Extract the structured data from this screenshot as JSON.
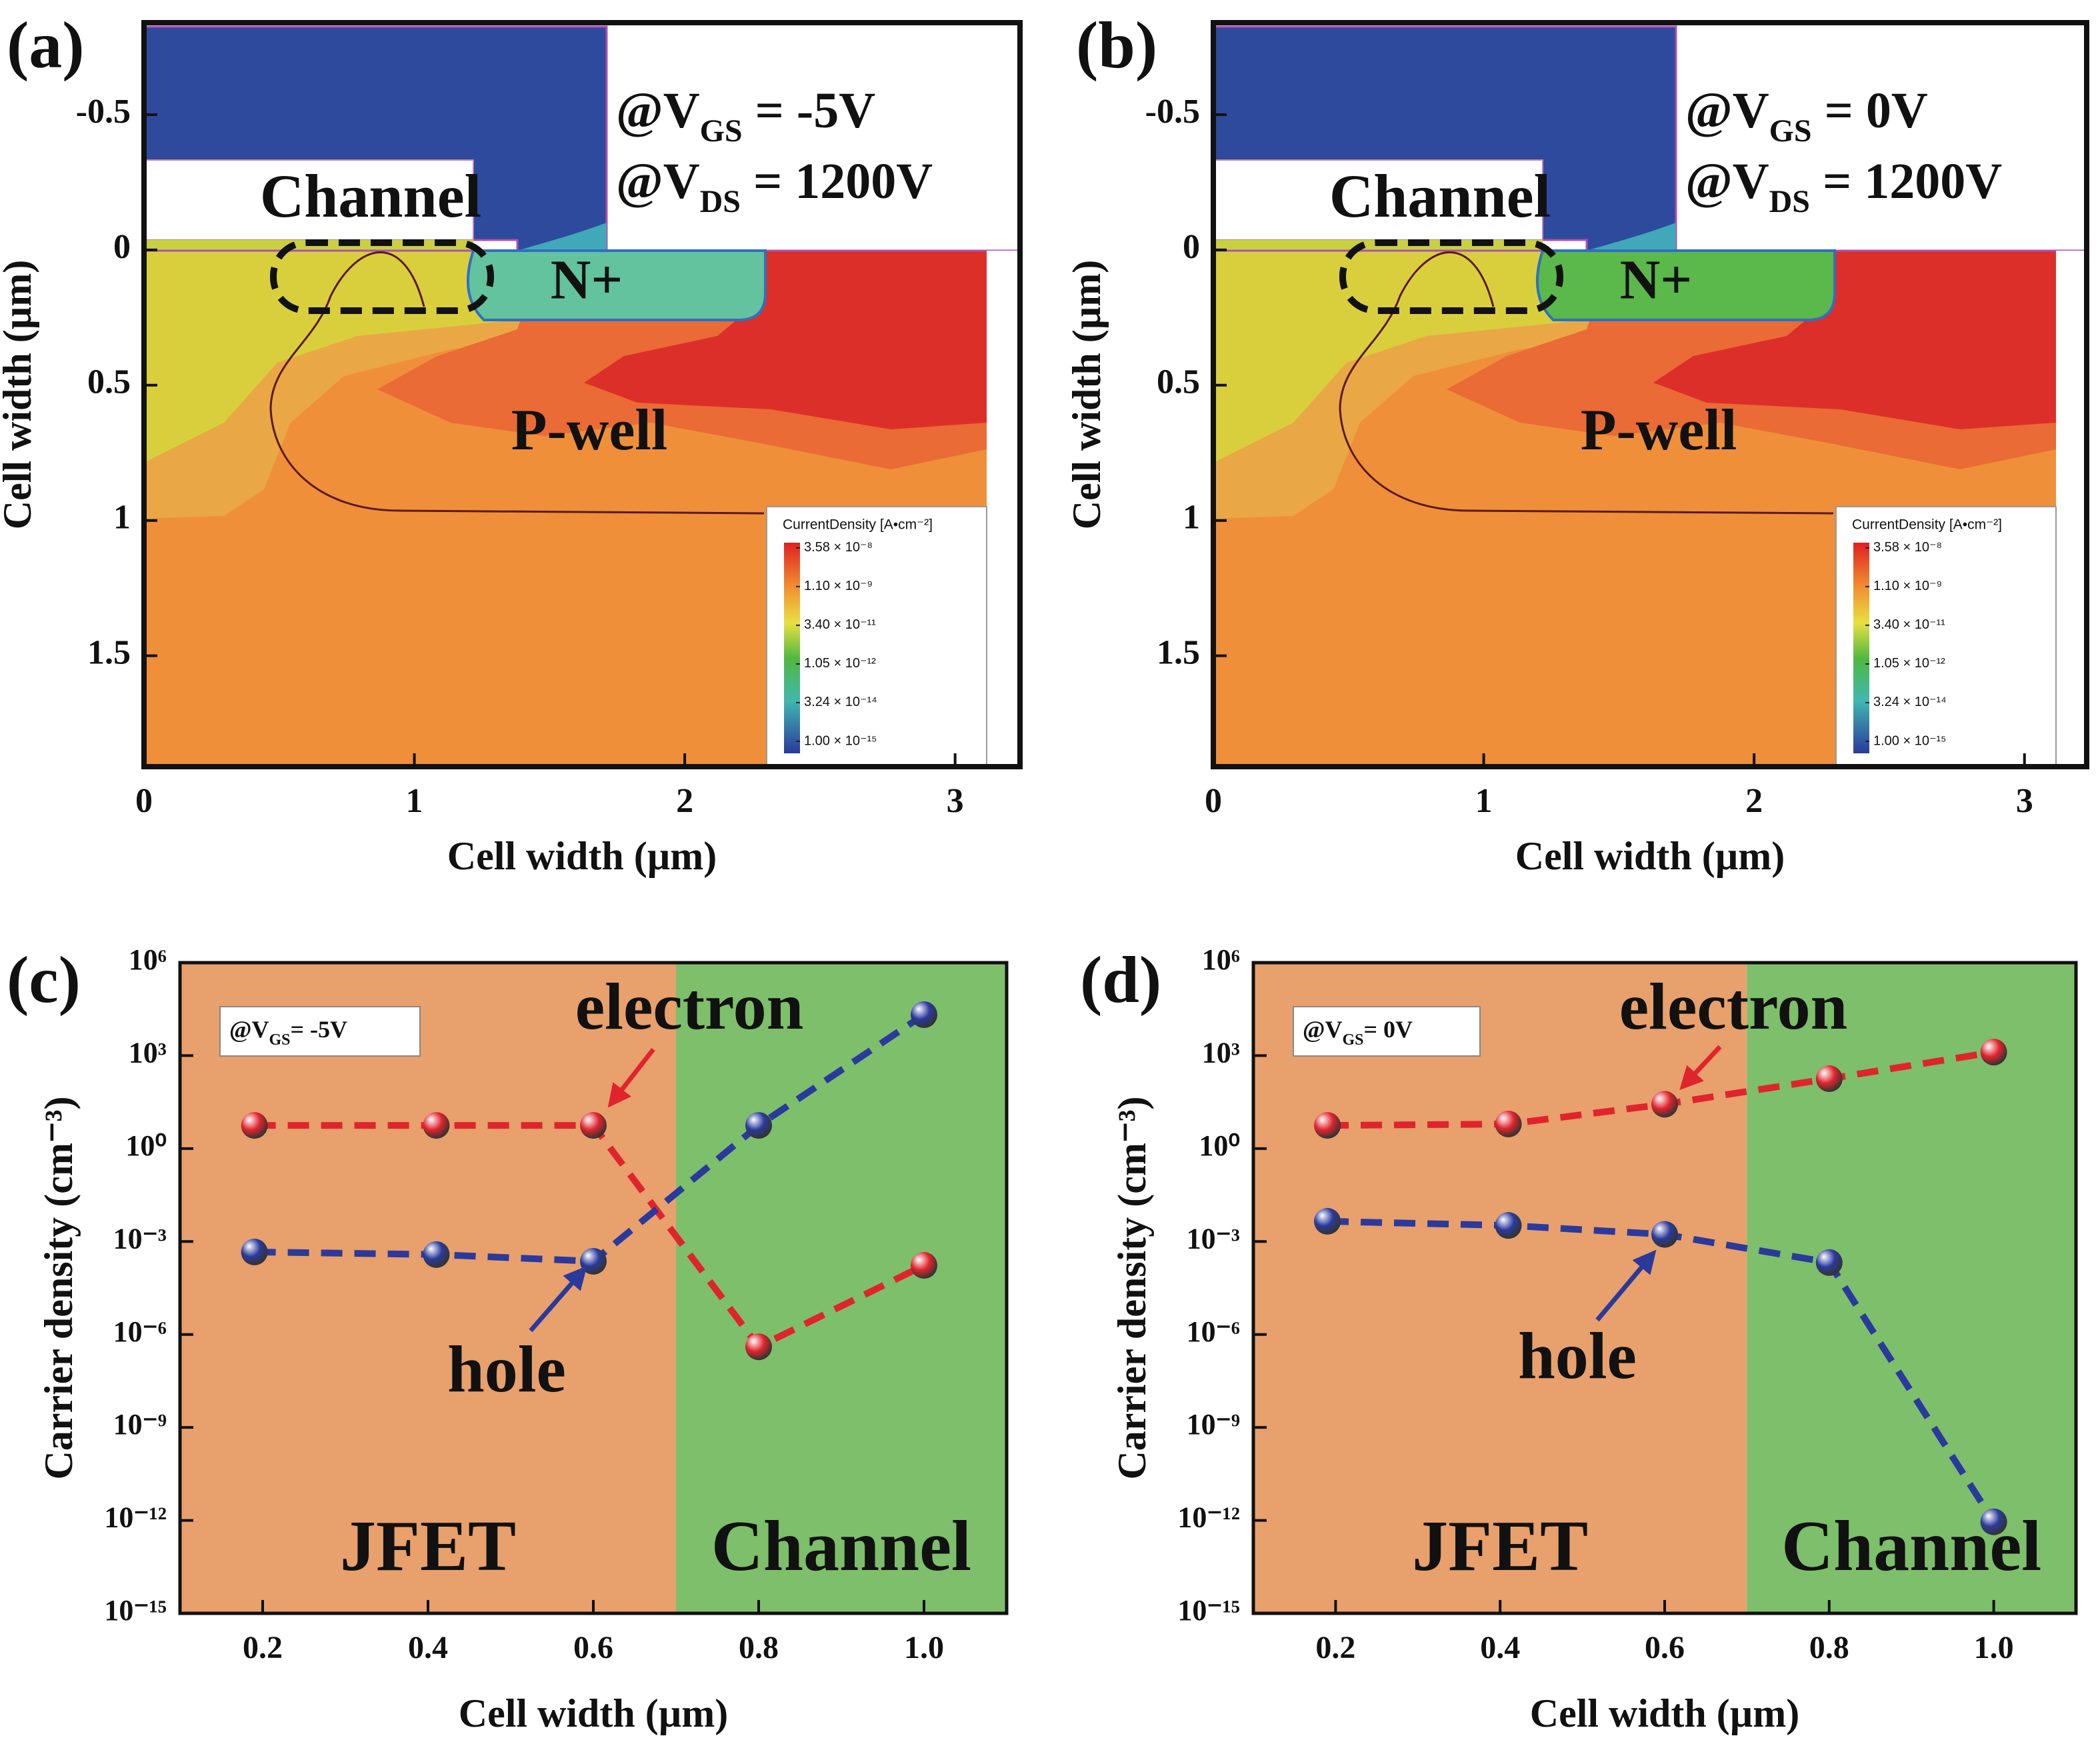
{
  "chart_data": [
    {
      "type": "contour",
      "panel_label": "(a)",
      "xlabel": "Cell width (µm)",
      "ylabel": "Cell width (µm)",
      "xlim": [
        0,
        3.24
      ],
      "ylim": [
        1.91,
        -0.84
      ],
      "xticks": [
        0,
        1,
        2,
        3
      ],
      "yticks": [
        -0.5,
        0,
        0.5,
        1,
        1.5
      ],
      "annotations": [
        {
          "parts": [
            "@V",
            "GS",
            " = -5V"
          ],
          "color": "#d42a35"
        },
        {
          "parts": [
            "@V",
            "DS",
            " = 1200V"
          ],
          "color": "#111111"
        }
      ],
      "region_labels": [
        "Channel",
        "N+",
        "P-well"
      ],
      "colorbar": {
        "title": "CurrentDensity [A•cm⁻²]",
        "log": true,
        "clim": [
          3.4e-16,
          5.7e-08
        ],
        "ticks": [
          {
            "value": 3.58e-08,
            "label": "3.58 × 10⁻⁸"
          },
          {
            "value": 1.1e-09,
            "label": "1.10 × 10⁻⁹"
          },
          {
            "value": 3.4e-11,
            "label": "3.40 × 10⁻¹¹"
          },
          {
            "value": 1.05e-12,
            "label": "1.05 × 10⁻¹²"
          },
          {
            "value": 3.24e-14,
            "label": "3.24 × 10⁻¹⁴"
          },
          {
            "value": 1e-15,
            "label": "1.00 × 10⁻¹⁵"
          }
        ]
      }
    },
    {
      "type": "contour",
      "panel_label": "(b)",
      "xlabel": "Cell width (µm)",
      "ylabel": "Cell width (µm)",
      "xlim": [
        0,
        3.23
      ],
      "ylim": [
        1.91,
        -0.84
      ],
      "xticks": [
        0,
        1,
        2,
        3
      ],
      "yticks": [
        -0.5,
        0,
        0.5,
        1,
        1.5
      ],
      "annotations": [
        {
          "parts": [
            "@V",
            "GS",
            " = 0V"
          ],
          "color": "#d42a35"
        },
        {
          "parts": [
            "@V",
            "DS",
            " = 1200V"
          ],
          "color": "#111111"
        }
      ],
      "region_labels": [
        "Channel",
        "N+",
        "P-well"
      ],
      "colorbar": {
        "title": "CurrentDensity [A•cm⁻²]",
        "log": true,
        "clim": [
          3.4e-16,
          5.7e-08
        ],
        "ticks": [
          {
            "value": 3.58e-08,
            "label": "3.58 × 10⁻⁸"
          },
          {
            "value": 1.1e-09,
            "label": "1.10 × 10⁻⁹"
          },
          {
            "value": 3.4e-11,
            "label": "3.40 × 10⁻¹¹"
          },
          {
            "value": 1.05e-12,
            "label": "1.05 × 10⁻¹²"
          },
          {
            "value": 3.24e-14,
            "label": "3.24 × 10⁻¹⁴"
          },
          {
            "value": 1e-15,
            "label": "1.00 × 10⁻¹⁵"
          }
        ]
      }
    },
    {
      "type": "line",
      "panel_label": "(c)",
      "xlabel": "Cell width (µm)",
      "ylabel": "Carrier density (cm⁻³)",
      "xlim": [
        0.1,
        1.1
      ],
      "xticks": [
        0.2,
        0.4,
        0.6,
        0.8,
        {
          "value": 1,
          "label": "1.0"
        }
      ],
      "yscale": "log",
      "ylim": [
        1e-15,
        1000000.0
      ],
      "yticks": [
        {
          "value": 1e-15,
          "label": "10⁻¹⁵"
        },
        {
          "value": 1e-12,
          "label": "10⁻¹²"
        },
        {
          "value": 1e-09,
          "label": "10⁻⁹"
        },
        {
          "value": 1e-06,
          "label": "10⁻⁶"
        },
        {
          "value": 0.001,
          "label": "10⁻³"
        },
        {
          "value": 1,
          "label": "10⁰"
        },
        {
          "value": 1000,
          "label": "10³"
        },
        {
          "value": 1000000,
          "label": "10⁶"
        }
      ],
      "x": [
        0.19,
        0.41,
        0.6,
        0.8,
        1.0
      ],
      "series": [
        {
          "name": "electron",
          "color": "#e0242c",
          "values": [
            5.6,
            5.6,
            5.6,
            4e-07,
            0.00017
          ]
        },
        {
          "name": "hole",
          "color": "#2a3a9c",
          "values": [
            0.00046,
            0.00038,
            0.00023,
            5.6,
            21000
          ]
        }
      ],
      "regions": [
        {
          "name": "JFET",
          "from": 0.1,
          "to": 0.7,
          "color": "#e8a06c"
        },
        {
          "name": "Channel",
          "from": 0.7,
          "to": 1.1,
          "color": "#7dbf6a"
        }
      ],
      "annotation": {
        "parts": [
          "@V",
          "GS",
          "= -5V"
        ]
      }
    },
    {
      "type": "line",
      "panel_label": "(d)",
      "xlabel": "Cell width (µm)",
      "ylabel": "Carrier density (cm⁻³)",
      "xlim": [
        0.1,
        1.1
      ],
      "xticks": [
        0.2,
        0.4,
        0.6,
        0.8,
        {
          "value": 1,
          "label": "1.0"
        }
      ],
      "yscale": "log",
      "ylim": [
        1e-15,
        1000000.0
      ],
      "yticks": [
        {
          "value": 1e-15,
          "label": "10⁻¹⁵"
        },
        {
          "value": 1e-12,
          "label": "10⁻¹²"
        },
        {
          "value": 1e-09,
          "label": "10⁻⁹"
        },
        {
          "value": 1e-06,
          "label": "10⁻⁶"
        },
        {
          "value": 0.001,
          "label": "10⁻³"
        },
        {
          "value": 1,
          "label": "10⁰"
        },
        {
          "value": 1000,
          "label": "10³"
        },
        {
          "value": 1000000,
          "label": "10⁶"
        }
      ],
      "x": [
        0.19,
        0.41,
        0.6,
        0.8,
        1.0
      ],
      "series": [
        {
          "name": "electron",
          "color": "#e0242c",
          "values": [
            5.6,
            6.2,
            27,
            180,
            1300
          ]
        },
        {
          "name": "hole",
          "color": "#2a3a9c",
          "values": [
            0.0045,
            0.0033,
            0.0017,
            0.00021,
            9e-13
          ]
        }
      ],
      "regions": [
        {
          "name": "JFET",
          "from": 0.1,
          "to": 0.7,
          "color": "#e8a06c"
        },
        {
          "name": "Channel",
          "from": 0.7,
          "to": 1.1,
          "color": "#7dbf6a"
        }
      ],
      "annotation": {
        "parts": [
          "@V",
          "GS",
          "= 0V"
        ]
      }
    }
  ]
}
